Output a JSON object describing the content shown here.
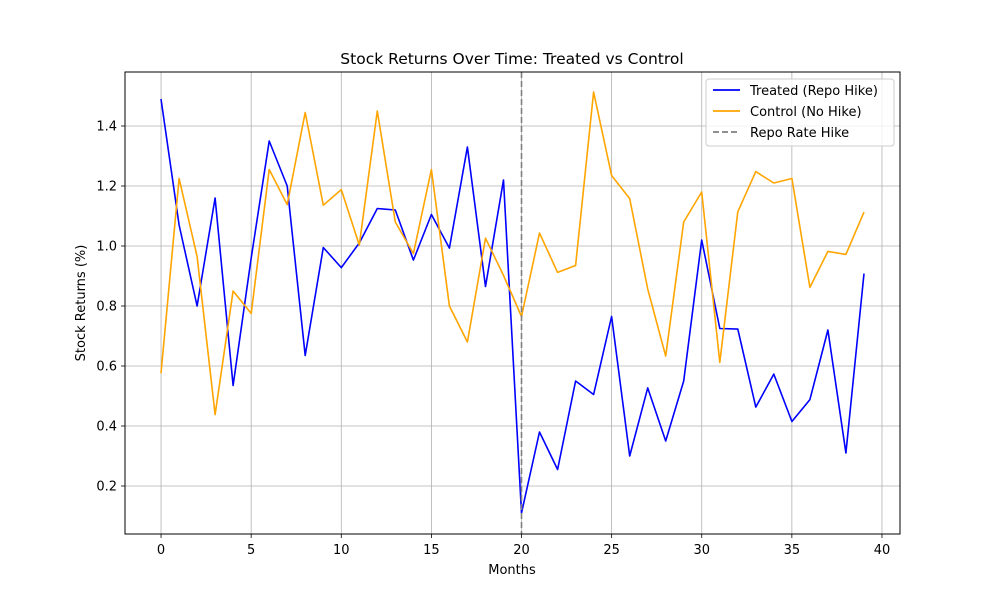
{
  "chart_data": {
    "type": "line",
    "title": "Stock Returns Over Time: Treated vs Control",
    "xlabel": "Months",
    "ylabel": "Stock Returns (%)",
    "xlim": [
      -2,
      41
    ],
    "ylim": [
      0.04,
      1.58
    ],
    "xticks": [
      0,
      5,
      10,
      15,
      20,
      25,
      30,
      35,
      40
    ],
    "yticks": [
      0.2,
      0.4,
      0.6,
      0.8,
      1.0,
      1.2,
      1.4
    ],
    "ytick_labels": [
      "0.2",
      "0.4",
      "0.6",
      "0.8",
      "1.0",
      "1.2",
      "1.4"
    ],
    "grid": true,
    "legend_position": "top-right",
    "x": [
      0,
      1,
      2,
      3,
      4,
      5,
      6,
      7,
      8,
      9,
      10,
      11,
      12,
      13,
      14,
      15,
      16,
      17,
      18,
      19,
      20,
      21,
      22,
      23,
      24,
      25,
      26,
      27,
      28,
      29,
      30,
      31,
      32,
      33,
      34,
      35,
      36,
      37,
      38,
      39
    ],
    "series": [
      {
        "name": "Treated (Repo Hike)",
        "color": "#0000ff",
        "values": [
          1.49,
          1.07,
          0.8,
          1.16,
          0.535,
          0.96,
          1.35,
          1.2,
          0.635,
          0.995,
          0.928,
          1.01,
          1.125,
          1.12,
          0.953,
          1.105,
          0.993,
          1.33,
          0.865,
          1.22,
          0.11,
          0.38,
          0.255,
          0.55,
          0.505,
          0.765,
          0.3,
          0.527,
          0.35,
          0.55,
          1.02,
          0.725,
          0.723,
          0.463,
          0.573,
          0.415,
          0.488,
          0.72,
          0.31,
          0.908
        ]
      },
      {
        "name": "Control (No Hike)",
        "color": "#ffa500",
        "values": [
          0.576,
          1.225,
          0.965,
          0.438,
          0.85,
          0.775,
          1.255,
          1.138,
          1.445,
          1.136,
          1.188,
          1.003,
          1.45,
          1.08,
          0.975,
          1.255,
          0.8,
          0.68,
          1.026,
          0.902,
          0.765,
          1.043,
          0.912,
          0.935,
          1.513,
          1.235,
          1.158,
          0.857,
          0.633,
          1.08,
          1.18,
          0.612,
          1.114,
          1.248,
          1.21,
          1.225,
          0.862,
          0.982,
          0.972,
          1.113
        ]
      }
    ],
    "annotations": [
      {
        "type": "vline",
        "x": 20,
        "name": "Repo Rate Hike",
        "color": "#808080",
        "style": "dashed"
      }
    ],
    "legend": [
      "Treated (Repo Hike)",
      "Control (No Hike)",
      "Repo Rate Hike"
    ]
  }
}
